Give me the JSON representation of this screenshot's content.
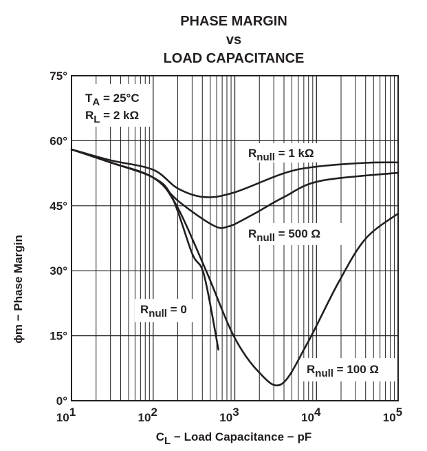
{
  "chart_data": {
    "type": "line",
    "title": [
      "PHASE MARGIN",
      "vs",
      "LOAD CAPACITANCE"
    ],
    "xlabel": {
      "main": "C",
      "sub": "L",
      "rest": " − Load Capacitance − pF"
    },
    "ylabel": "ϕm − Phase Margin",
    "x_scale": "log",
    "xlim": [
      10,
      100000
    ],
    "ylim": [
      0,
      75
    ],
    "grid": true,
    "x_ticks": [
      {
        "base": "10",
        "exp": "1"
      },
      {
        "base": "10",
        "exp": "2"
      },
      {
        "base": "10",
        "exp": "3"
      },
      {
        "base": "10",
        "exp": "4"
      },
      {
        "base": "10",
        "exp": "5"
      }
    ],
    "y_ticks": [
      {
        "v": 0,
        "label": "0°"
      },
      {
        "v": 15,
        "label": "15°"
      },
      {
        "v": 30,
        "label": "30°"
      },
      {
        "v": 45,
        "label": "45°"
      },
      {
        "v": 60,
        "label": "60°"
      },
      {
        "v": 75,
        "label": "75°"
      }
    ],
    "conditions": [
      {
        "main": "T",
        "sub": "A",
        "rest": " = 25°C"
      },
      {
        "main": "R",
        "sub": "L",
        "rest": " = 2 kΩ"
      }
    ],
    "line_color": "#231f20",
    "series": [
      {
        "name": {
          "main": "R",
          "sub": "null",
          "rest": " = 1 kΩ"
        },
        "points": [
          [
            10,
            58
          ],
          [
            30,
            55.5
          ],
          [
            100,
            53.3
          ],
          [
            200,
            49
          ],
          [
            420,
            47
          ],
          [
            960,
            48
          ],
          [
            4000,
            52.5
          ],
          [
            9800,
            54
          ],
          [
            40000,
            54.9
          ],
          [
            100000,
            55
          ]
        ]
      },
      {
        "name": {
          "main": "R",
          "sub": "null",
          "rest": " = 500 Ω"
        },
        "points": [
          [
            10,
            58
          ],
          [
            30,
            55
          ],
          [
            100,
            51.5
          ],
          [
            205,
            46
          ],
          [
            540,
            40.5
          ],
          [
            830,
            40.2
          ],
          [
            1600,
            42.8
          ],
          [
            4000,
            47
          ],
          [
            11000,
            50.7
          ],
          [
            100000,
            52.6
          ]
        ]
      },
      {
        "name": {
          "main": "R",
          "sub": "null",
          "rest": " = 100 Ω"
        },
        "points": [
          [
            10,
            58
          ],
          [
            30,
            55
          ],
          [
            100,
            51.5
          ],
          [
            190,
            45.3
          ],
          [
            445,
            30
          ],
          [
            960,
            15.1
          ],
          [
            1950,
            6.7
          ],
          [
            3700,
            3.8
          ],
          [
            7600,
            13
          ],
          [
            18600,
            27.3
          ],
          [
            40000,
            37.4
          ],
          [
            100000,
            43.2
          ]
        ]
      },
      {
        "name": {
          "main": "R",
          "sub": "null",
          "rest": " = 0"
        },
        "points": [
          [
            10,
            58
          ],
          [
            30,
            55
          ],
          [
            100,
            51.5
          ],
          [
            170,
            47
          ],
          [
            300,
            34
          ],
          [
            420,
            29
          ],
          [
            630,
            11.8
          ]
        ]
      }
    ]
  }
}
